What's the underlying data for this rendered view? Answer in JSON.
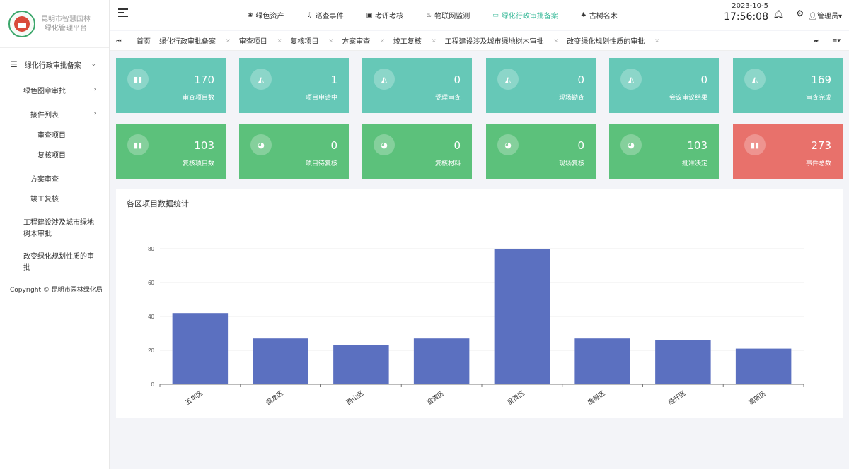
{
  "sidebar": {
    "logo_line1": "昆明市智慧园林",
    "logo_line2": "绿化管理平台",
    "items": [
      {
        "label": "绿化行政审批备案"
      },
      {
        "label": "绿色图章审批"
      },
      {
        "label": "接件列表"
      },
      {
        "label": "审查项目"
      },
      {
        "label": "复核项目"
      },
      {
        "label": "方案审查"
      },
      {
        "label": "竣工复核"
      },
      {
        "label": "工程建设涉及城市绿地树木审批"
      },
      {
        "label": "改变绿化规划性质的审批"
      }
    ],
    "copyright": "Copyright © 昆明市园林绿化局"
  },
  "topnav": {
    "items": [
      {
        "label": "绿色资产",
        "icon": "leaf-icon"
      },
      {
        "label": "巡查事件",
        "icon": "bell-icon"
      },
      {
        "label": "考评考核",
        "icon": "clipboard-icon"
      },
      {
        "label": "物联网监测",
        "icon": "thermometer-icon"
      },
      {
        "label": "绿化行政审批备案",
        "icon": "folder-icon",
        "active": true
      },
      {
        "label": "古树名木",
        "icon": "tree-icon"
      }
    ],
    "date": "2023-10-5",
    "time": "17:56:08",
    "user": "管理员"
  },
  "tabs": [
    {
      "label": "首页",
      "closable": false
    },
    {
      "label": "绿化行政审批备案",
      "closable": true
    },
    {
      "label": "审查项目",
      "closable": true
    },
    {
      "label": "复核项目",
      "closable": true
    },
    {
      "label": "方案审查",
      "closable": true
    },
    {
      "label": "竣工复核",
      "closable": true
    },
    {
      "label": "工程建设涉及城市绿地树木审批",
      "closable": true
    },
    {
      "label": "改变绿化规划性质的审批",
      "closable": true
    }
  ],
  "cards_row1": [
    {
      "value": "170",
      "label": "审查项目数",
      "icon": "bar-chart-icon"
    },
    {
      "value": "1",
      "label": "项目申请中",
      "icon": "area-chart-icon"
    },
    {
      "value": "0",
      "label": "受理审查",
      "icon": "area-chart-icon"
    },
    {
      "value": "0",
      "label": "现场勘查",
      "icon": "area-chart-icon"
    },
    {
      "value": "0",
      "label": "会议审议结果",
      "icon": "area-chart-icon"
    },
    {
      "value": "169",
      "label": "审查完成",
      "icon": "area-chart-icon"
    }
  ],
  "cards_row2": [
    {
      "value": "103",
      "label": "复核项目数",
      "icon": "bar-chart-icon"
    },
    {
      "value": "0",
      "label": "项目待复核",
      "icon": "pie-chart-icon"
    },
    {
      "value": "0",
      "label": "复核材料",
      "icon": "pie-chart-icon"
    },
    {
      "value": "0",
      "label": "现场复核",
      "icon": "pie-chart-icon"
    },
    {
      "value": "103",
      "label": "批准决定",
      "icon": "pie-chart-icon"
    },
    {
      "value": "273",
      "label": "事件总数",
      "icon": "bar-chart-icon"
    }
  ],
  "colors": {
    "teal": "#66c8b7",
    "green": "#5cc17b",
    "red": "#e8716b",
    "bar": "#5b70c0",
    "active": "#3dbb9b"
  },
  "chart_panel": {
    "title": "各区项目数据统计"
  },
  "chart_data": {
    "type": "bar",
    "title": "各区项目数据统计",
    "categories": [
      "五华区",
      "盘龙区",
      "西山区",
      "官渡区",
      "呈贡区",
      "度假区",
      "经开区",
      "高新区"
    ],
    "values": [
      42,
      27,
      23,
      27,
      80,
      27,
      26,
      21
    ],
    "ylim": [
      0,
      80
    ],
    "yticks": [
      0,
      20,
      40,
      60,
      80
    ],
    "grid": true,
    "xlabel": "",
    "ylabel": ""
  }
}
